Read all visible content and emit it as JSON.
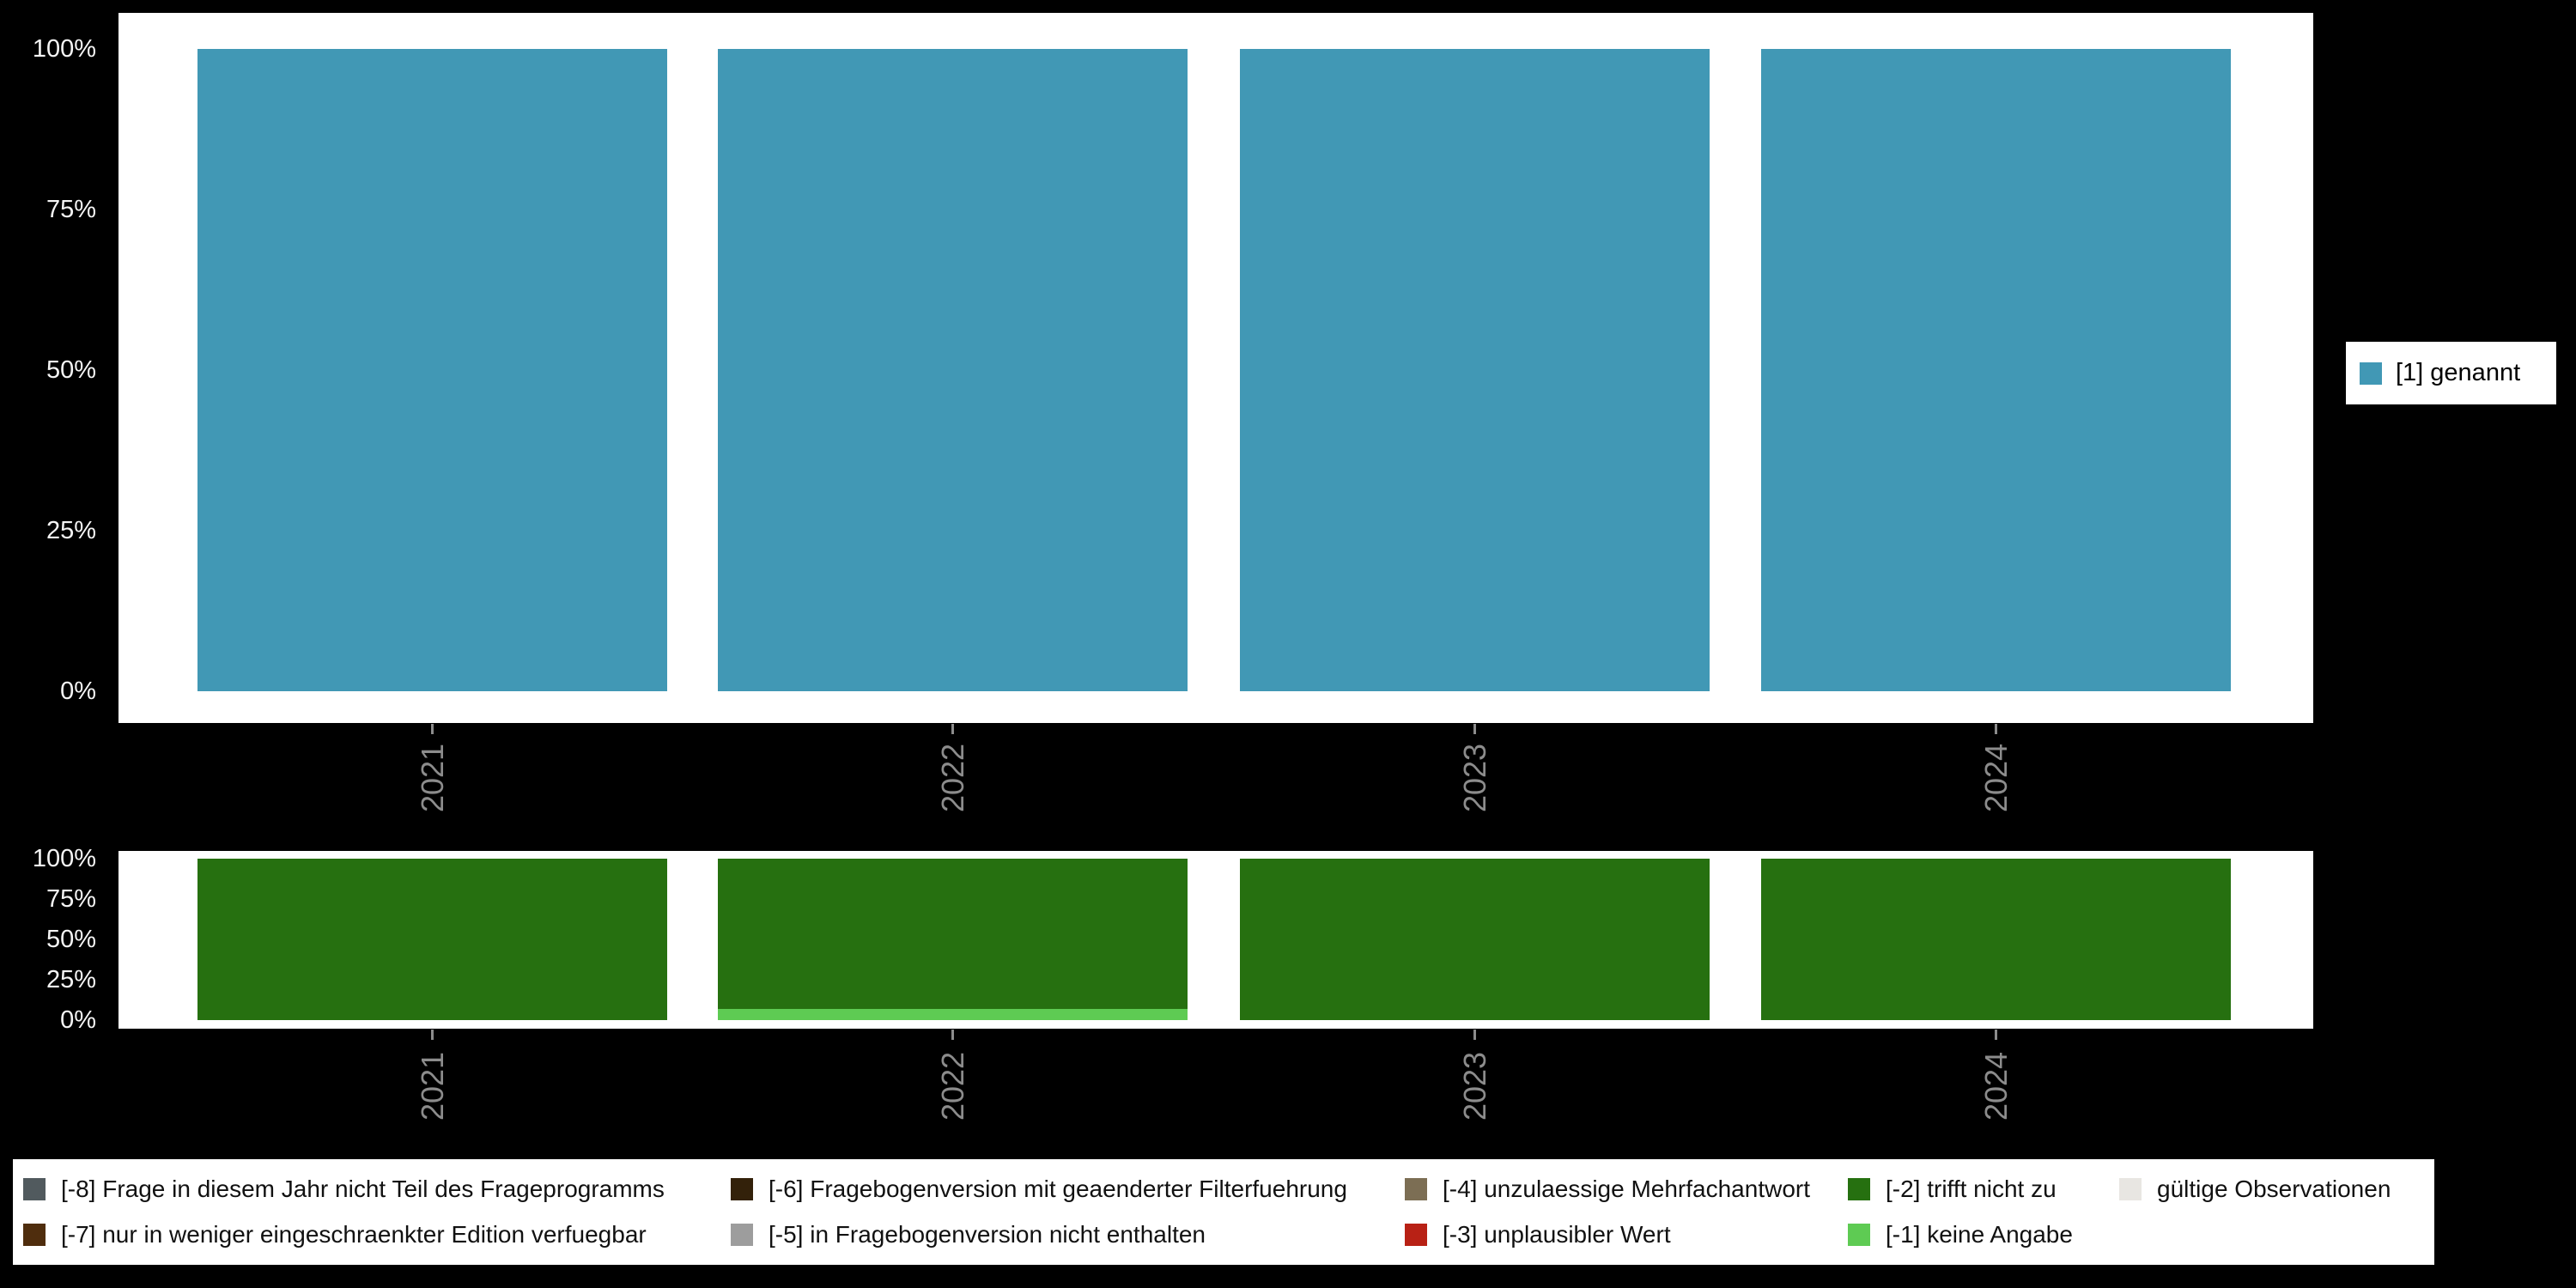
{
  "chart_data": [
    {
      "type": "bar",
      "stacked": true,
      "categories": [
        "2021",
        "2022",
        "2023",
        "2024"
      ],
      "series": [
        {
          "name": "[1] genannt",
          "color": "#4198b5",
          "values": [
            100,
            100,
            100,
            100
          ]
        }
      ],
      "y_tick_labels": [
        "100%",
        "75%",
        "50%",
        "25%",
        "0%"
      ],
      "ylim": [
        0,
        100
      ],
      "grid": false,
      "legend_position": "right"
    },
    {
      "type": "bar",
      "stacked": true,
      "stack_order": "bottom-to-top",
      "categories": [
        "2021",
        "2022",
        "2023",
        "2024"
      ],
      "series": [
        {
          "name": "[-1] keine Angabe",
          "color": "#5ecb53",
          "values": [
            0,
            7,
            0,
            0
          ]
        },
        {
          "name": "[-2] trifft nicht zu",
          "color": "#267010",
          "values": [
            100,
            93,
            100,
            100
          ]
        }
      ],
      "y_tick_labels": [
        "100%",
        "75%",
        "50%",
        "25%",
        "0%"
      ],
      "ylim": [
        0,
        100
      ],
      "grid": false,
      "legend_position": "bottom"
    }
  ],
  "missing_legend": {
    "items": [
      {
        "row": 1,
        "col": 1,
        "label": "[-8] Frage in diesem Jahr nicht Teil des Frageprogramms",
        "color": "#515a5e"
      },
      {
        "row": 2,
        "col": 1,
        "label": "[-7] nur in weniger eingeschraenkter Edition verfuegbar",
        "color": "#4f2d0d"
      },
      {
        "row": 1,
        "col": 2,
        "label": "[-6] Fragebogenversion mit geaenderter Filterfuehrung",
        "color": "#33210a"
      },
      {
        "row": 2,
        "col": 2,
        "label": "[-5] in Fragebogenversion nicht enthalten",
        "color": "#9d9d9d"
      },
      {
        "row": 1,
        "col": 3,
        "label": "[-4] unzulaessige Mehrfachantwort",
        "color": "#7c6e54"
      },
      {
        "row": 2,
        "col": 3,
        "label": "[-3] unplausibler Wert",
        "color": "#b82115"
      },
      {
        "row": 1,
        "col": 4,
        "label": "[-2] trifft nicht zu",
        "color": "#267010"
      },
      {
        "row": 2,
        "col": 4,
        "label": "[-1] keine Angabe",
        "color": "#5ecb53"
      },
      {
        "row": 1,
        "col": 5,
        "label": "gültige Observationen",
        "color": "#e8e6e2"
      }
    ]
  },
  "colors": {
    "background": "#000000",
    "panel": "#ffffff",
    "axis_text": "#f5f5f5",
    "year_text": "#8c8c8c",
    "legend_text": "#111111"
  }
}
